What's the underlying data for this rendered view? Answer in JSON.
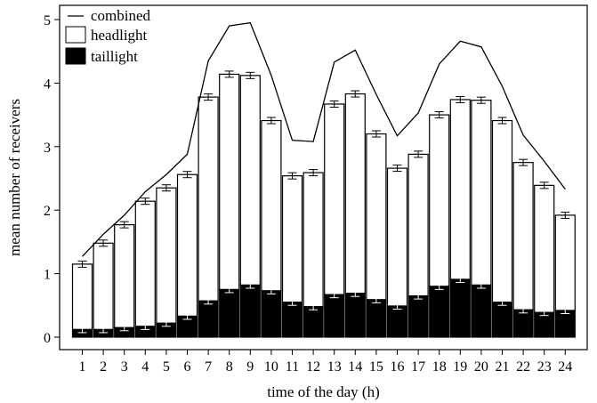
{
  "chart_data": {
    "type": "bar",
    "stacked": true,
    "title": "",
    "xlabel": "time of the day (h)",
    "ylabel": "mean number of receivers",
    "categories": [
      "1",
      "2",
      "3",
      "4",
      "5",
      "6",
      "7",
      "8",
      "9",
      "10",
      "11",
      "12",
      "13",
      "14",
      "15",
      "16",
      "17",
      "18",
      "19",
      "20",
      "21",
      "22",
      "23",
      "24"
    ],
    "ylim": [
      0,
      5
    ],
    "yticks": [
      0,
      1,
      2,
      3,
      4,
      5
    ],
    "series": [
      {
        "name": "taillight",
        "color": "#000000",
        "values": [
          0.12,
          0.12,
          0.15,
          0.17,
          0.22,
          0.33,
          0.57,
          0.75,
          0.82,
          0.73,
          0.55,
          0.48,
          0.67,
          0.69,
          0.59,
          0.49,
          0.65,
          0.8,
          0.91,
          0.82,
          0.55,
          0.43,
          0.39,
          0.42
        ]
      },
      {
        "name": "headlight",
        "color": "#ffffff",
        "values": [
          1.03,
          1.36,
          1.62,
          1.97,
          2.13,
          2.23,
          3.21,
          3.39,
          3.3,
          2.68,
          1.99,
          2.11,
          3.0,
          3.14,
          2.61,
          2.17,
          2.23,
          2.7,
          2.83,
          2.91,
          2.86,
          2.32,
          2.0,
          1.5
        ]
      },
      {
        "name": "combined",
        "type": "line",
        "color": "#000000",
        "values": [
          1.27,
          1.62,
          1.92,
          2.29,
          2.56,
          2.88,
          4.35,
          4.9,
          4.95,
          4.12,
          3.1,
          3.08,
          4.33,
          4.52,
          3.82,
          3.17,
          3.53,
          4.3,
          4.66,
          4.57,
          3.95,
          3.18,
          2.77,
          2.33
        ]
      }
    ],
    "legend": {
      "position": "top-left",
      "entries": [
        "combined",
        "headlight",
        "taillight"
      ]
    },
    "grid": false
  }
}
